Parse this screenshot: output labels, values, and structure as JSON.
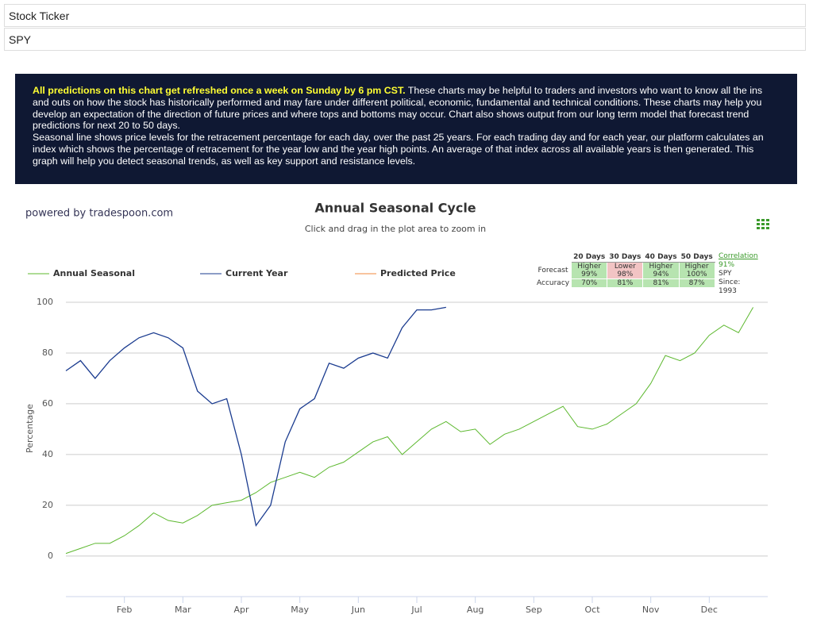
{
  "form": {
    "label": "Stock Ticker",
    "value": "SPY"
  },
  "info": {
    "lead": "All predictions on this chart get refreshed once a week on Sunday by 6 pm CST.",
    "text": "These charts may be helpful to traders and investors who want to know all the ins and outs on how the stock has historically performed and may fare under different political, economic, fundamental and technical conditions. These charts may help you develop an expectation of the direction of future prices and where tops and bottoms may occur. Chart also shows output from our long term model that forecast trend predictions for next 20 to 50 days.",
    "text2": "Seasonal line shows price levels for the retracement percentage for each day, over the past 25 years. For each trading day and for each year, our platform calculates an index which shows the percentage of retracement for the year low and the year high points. An average of that index across all available years is then generated. This graph will help you detect seasonal trends, as well as key support and resistance levels."
  },
  "powered_by": "powered by tradespoon.com",
  "forecast_table": {
    "headers": [
      "20 Days",
      "30 Days",
      "40 Days",
      "50 Days"
    ],
    "forecast_label": "Forecast",
    "forecast": [
      {
        "direction": "Higher",
        "pct": "99%",
        "color": "#b7e4b0"
      },
      {
        "direction": "Lower",
        "pct": "98%",
        "color": "#f2c4c4"
      },
      {
        "direction": "Higher",
        "pct": "94%",
        "color": "#b7e4b0"
      },
      {
        "direction": "Higher",
        "pct": "100%",
        "color": "#b7e4b0"
      }
    ],
    "accuracy_label": "Accuracy",
    "accuracy": [
      "70%",
      "81%",
      "81%",
      "87%"
    ],
    "correlation_label": "Correlation",
    "correlation": "91%",
    "ticker": "SPY",
    "since": "Since: 1993"
  },
  "chart_data": {
    "type": "line",
    "title": "Annual Seasonal Cycle",
    "subtitle": "Click and drag in the plot area to zoom in",
    "y_label": "Percentage",
    "categories": [
      null,
      null,
      null,
      null,
      "Feb",
      null,
      null,
      null,
      "Mar",
      null,
      null,
      null,
      "Apr",
      null,
      null,
      null,
      "May",
      null,
      null,
      null,
      "Jun",
      null,
      null,
      null,
      "Jul",
      null,
      null,
      null,
      "Aug",
      null,
      null,
      null,
      "Sep",
      null,
      null,
      null,
      "Oct",
      null,
      null,
      null,
      "Nov",
      null,
      null,
      null,
      "Dec",
      null,
      null,
      null
    ],
    "series": [
      {
        "name": "Annual Seasonal",
        "color": "#5cb82e",
        "values": [
          1,
          3,
          5,
          5,
          8,
          12,
          17,
          14,
          13,
          16,
          20,
          21,
          22,
          25,
          29,
          31,
          33,
          31,
          35,
          37,
          41,
          45,
          47,
          40,
          45,
          50,
          53,
          49,
          50,
          44,
          48,
          50,
          53,
          56,
          59,
          51,
          50,
          52,
          56,
          60,
          68,
          79,
          77,
          80,
          87,
          91,
          88,
          98
        ]
      },
      {
        "name": "Current Year",
        "color": "#1a3b8f",
        "values": [
          73,
          77,
          70,
          77,
          82,
          86,
          88,
          86,
          82,
          65,
          60,
          62,
          40,
          12,
          20,
          45,
          58,
          62,
          76,
          74,
          78,
          80,
          78,
          90,
          97,
          97,
          98,
          null,
          null,
          null,
          null,
          null,
          null,
          null,
          null,
          null,
          null,
          null,
          null,
          null,
          null,
          null,
          null,
          null,
          null,
          null,
          null,
          null
        ]
      },
      {
        "name": "Predicted Price",
        "color": "#f08a3c",
        "values": [
          null,
          null,
          null,
          null,
          null,
          null,
          null,
          null,
          null,
          null,
          null,
          null,
          null,
          null,
          null,
          null,
          null,
          null,
          null,
          null,
          null,
          null,
          null,
          null,
          null,
          null,
          null,
          null,
          null,
          null,
          null,
          null,
          null,
          null,
          null,
          null,
          null,
          null,
          null,
          null,
          null,
          null,
          null,
          null,
          null,
          null,
          null,
          null
        ]
      }
    ],
    "ylim": [
      -16,
      100
    ],
    "yticks": [
      0,
      20,
      40,
      60,
      80,
      100
    ],
    "grid": true
  }
}
